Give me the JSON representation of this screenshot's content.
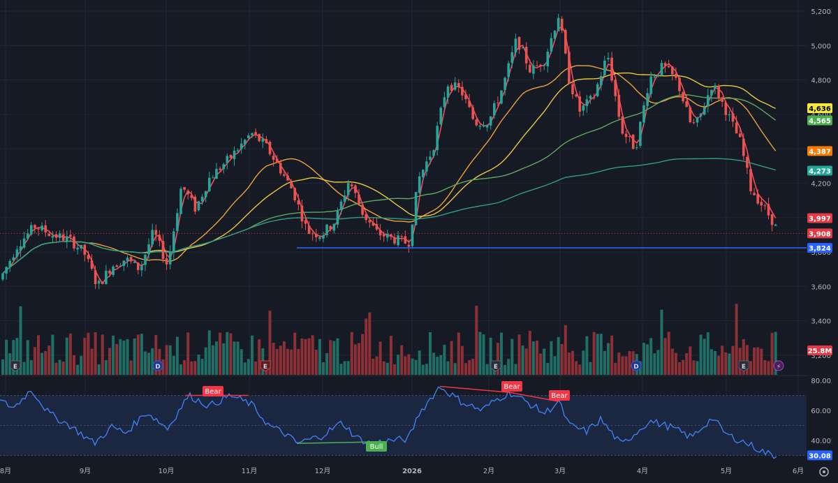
{
  "theme": {
    "background": "#161a25",
    "grid": "#232733",
    "axis_text": "#b2b5be",
    "up": "#26a69a",
    "down": "#ef5350",
    "volume_up": "#1f6f66",
    "volume_down": "#8c3035",
    "rsi_line": "#3f7df0",
    "rsi_band": "#1b2740",
    "support_line": "#2f6bff"
  },
  "chart_data": [
    {
      "type": "candlestick",
      "panel": "price",
      "y_ticks": [
        "5,200",
        "5,000",
        "4,800",
        "4,600",
        "4,400",
        "4,200",
        "4,000",
        "3,800",
        "3,600",
        "3,400",
        "3,200"
      ],
      "ylim": [
        3150,
        5230
      ],
      "x_tick_labels": [
        "8月",
        "9月",
        "10月",
        "11月",
        "12月",
        "2026",
        "2月",
        "3月",
        "4月",
        "5月",
        "6月"
      ],
      "moving_averages": [
        {
          "color": "#ef4d5d",
          "last": "3,997"
        },
        {
          "color": "#f0a23a",
          "last": "4,387"
        },
        {
          "color": "#e8c93e",
          "last": "4,636"
        },
        {
          "color": "#5fa860",
          "last": "4,565"
        },
        {
          "color": "#2f9e84",
          "last": "4,273"
        }
      ],
      "price_labels": [
        {
          "text": "4,636",
          "bg": "#f5e83a",
          "fg": "#000000",
          "value": 4636
        },
        {
          "text": "4,565",
          "bg": "#4caf50",
          "fg": "#ffffff",
          "value": 4565
        },
        {
          "text": "4,387",
          "bg": "#f57c00",
          "fg": "#ffffff",
          "value": 4387
        },
        {
          "text": "4,273",
          "bg": "#26a69a",
          "fg": "#ffffff",
          "value": 4273
        },
        {
          "text": "3,997",
          "bg": "#e53945",
          "fg": "#ffffff",
          "value": 3997
        },
        {
          "text": "3,908",
          "bg": "#e53945",
          "fg": "#ffffff",
          "value": 3908
        },
        {
          "text": "3,824",
          "bg": "#2962ff",
          "fg": "#ffffff",
          "value": 3824
        }
      ],
      "horizontal_line": {
        "value": 3824,
        "color": "#2f6bff"
      },
      "volume_label": "25.8M",
      "event_markers": [
        {
          "text": "E",
          "kind": "earnings"
        },
        {
          "text": "D",
          "kind": "dividend"
        },
        {
          "text": "E",
          "kind": "earnings-red"
        },
        {
          "text": "E",
          "kind": "earnings"
        },
        {
          "text": "D",
          "kind": "dividend"
        },
        {
          "text": "E",
          "kind": "earnings"
        },
        {
          "text": "⚡",
          "kind": "flash"
        }
      ]
    },
    {
      "type": "line",
      "panel": "rsi",
      "y_ticks": [
        "80.00",
        "60.00",
        "40.00"
      ],
      "ylim": [
        28,
        82
      ],
      "band": [
        30,
        70
      ],
      "last_value": "30.08",
      "divergence_labels": [
        {
          "text": "Bear",
          "color": "#f23645"
        },
        {
          "text": "Bull",
          "color": "#4caf50"
        },
        {
          "text": "Bear",
          "color": "#f23645"
        },
        {
          "text": "Bear",
          "color": "#f23645"
        }
      ]
    }
  ],
  "footer": {
    "settings_icon": "gear-icon"
  }
}
